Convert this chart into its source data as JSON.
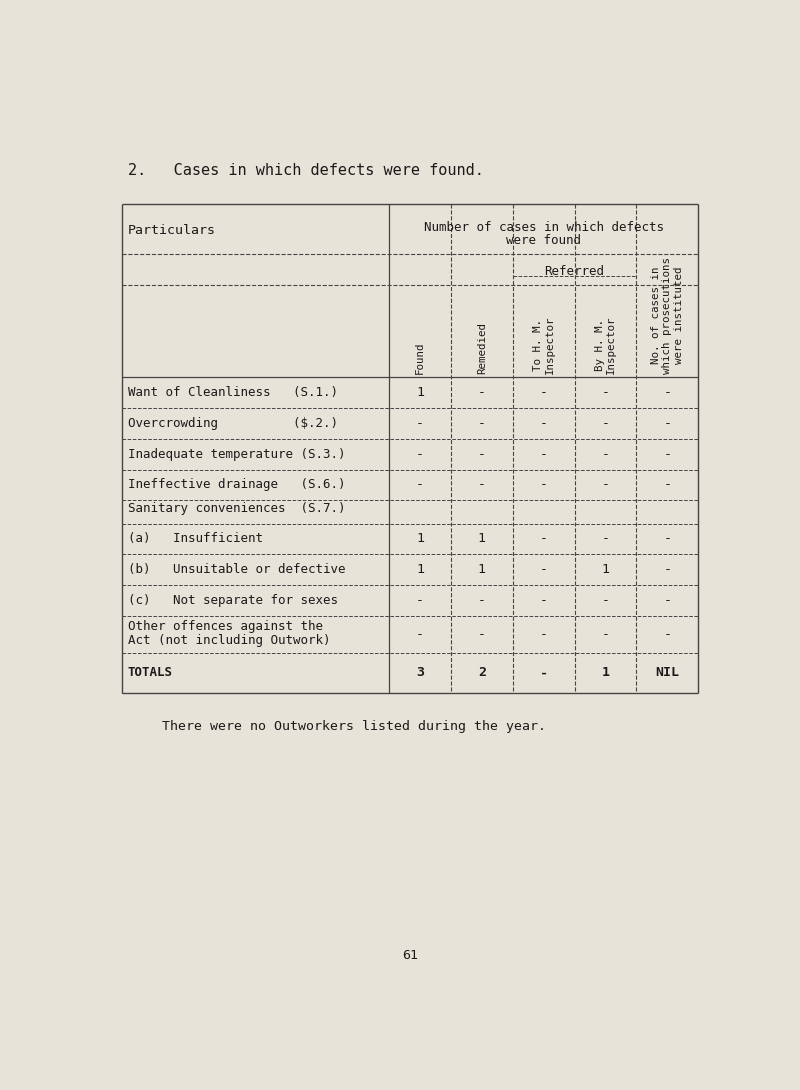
{
  "title": "2.   Cases in which defects were found.",
  "bg_color": "#e8e3d8",
  "table_header_main_line1": "Number of cases in which defects",
  "table_header_main_line2": "were found",
  "particulars_label": "Particulars",
  "col_headers": [
    "Found",
    "Remedied",
    "To H. M.\nInspector",
    "By H. M.\nInspector",
    "No. of cases in\nwhich prosecutions\nwere instituted"
  ],
  "referred_label": "Referred",
  "rows": [
    {
      "label": "Want of Cleanliness   (S.1.)",
      "values": [
        "1",
        "-",
        "-",
        "-",
        "-"
      ]
    },
    {
      "label": "Overcrowding          ($.2.)",
      "values": [
        "-",
        "-",
        "-",
        "-",
        "-"
      ]
    },
    {
      "label": "Inadequate temperature (S.3.)",
      "values": [
        "-",
        "-",
        "-",
        "-",
        "-"
      ]
    },
    {
      "label": "Ineffective drainage   (S.6.)",
      "values": [
        "-",
        "-",
        "-",
        "-",
        "-"
      ]
    },
    {
      "label": "Sanitary conveniences  (S.7.)",
      "values": [
        "",
        "",
        "",
        "",
        ""
      ],
      "is_section": true
    },
    {
      "label": "(a)   Insufficient",
      "values": [
        "1",
        "1",
        "-",
        "-",
        "-"
      ]
    },
    {
      "label": "(b)   Unsuitable or defective",
      "values": [
        "1",
        "1",
        "-",
        "1",
        "-"
      ]
    },
    {
      "label": "(c)   Not separate for sexes",
      "values": [
        "-",
        "-",
        "-",
        "-",
        "-"
      ]
    },
    {
      "label": "Other offences against the\nAct (not including Outwork)",
      "values": [
        "-",
        "-",
        "-",
        "-",
        "-"
      ]
    },
    {
      "label": "TOTALS",
      "values": [
        "3",
        "2",
        "-",
        "1",
        "NIL"
      ],
      "is_total": true
    }
  ],
  "footer_text": "There were no Outworkers listed during the year.",
  "page_number": "61",
  "text_color": "#1a1a1a",
  "line_color": "#444444"
}
